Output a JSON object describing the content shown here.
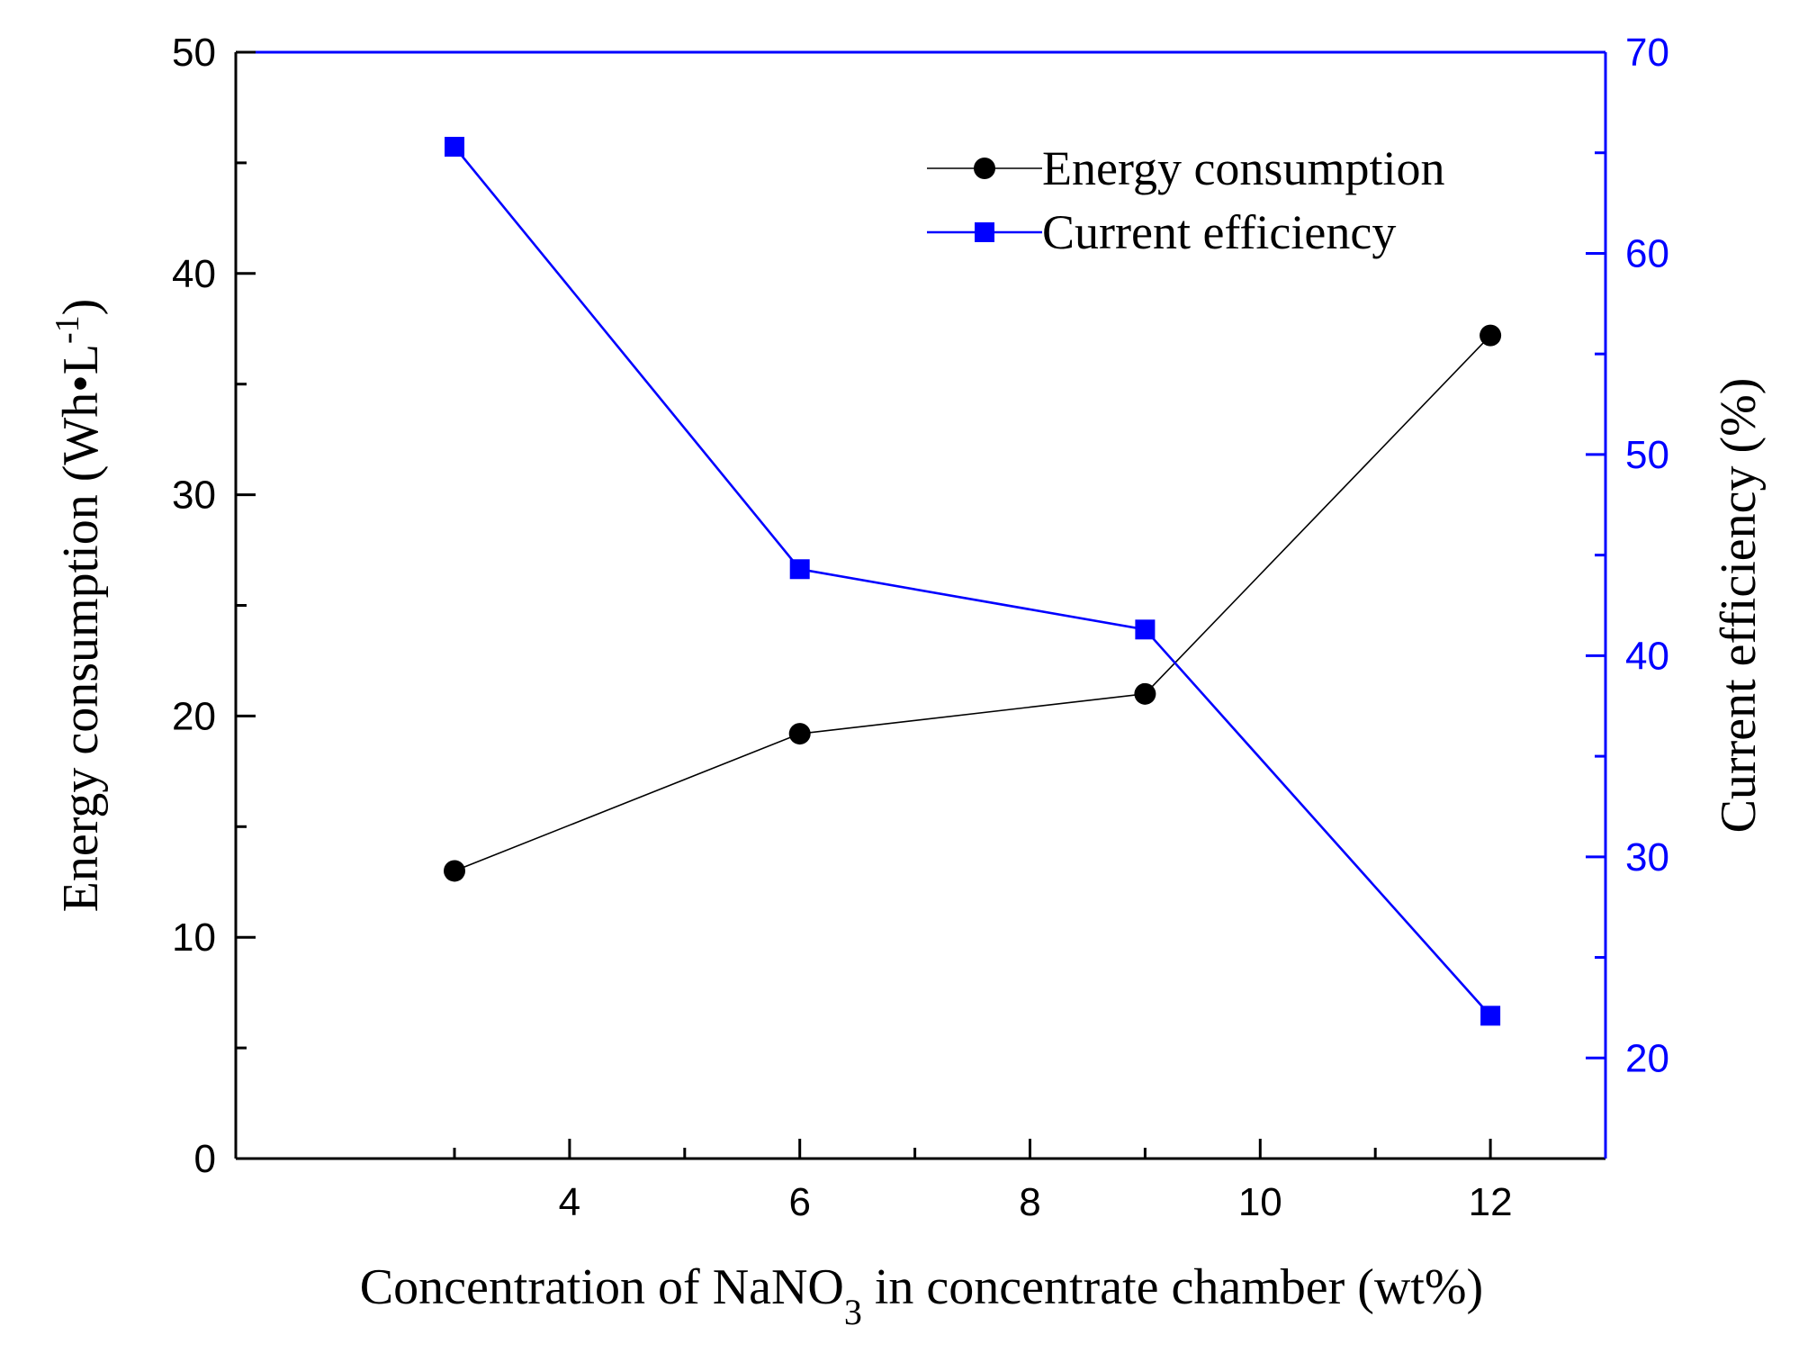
{
  "chart_data": {
    "type": "line",
    "title": "",
    "x": [
      3,
      6,
      9,
      12
    ],
    "xlim": [
      1.1,
      13.0
    ],
    "xticks": [
      "4",
      "6",
      "8",
      "10",
      "12"
    ],
    "xlabel": {
      "prefix": "Concentration of NaNO",
      "subscript": "3",
      "suffix": " in concentrate chamber (wt%)"
    },
    "y_left": {
      "label_main": "Energy consumption (Wh",
      "label_dot": "•",
      "label_unit": "L",
      "label_sup": "-1",
      "label_close": ")",
      "lim": [
        0,
        50
      ],
      "ticks": [
        "0",
        "10",
        "20",
        "30",
        "40",
        "50"
      ],
      "color": "#000000"
    },
    "y_right": {
      "label": "Current efficiency (%)",
      "lim": [
        15,
        70
      ],
      "ticks": [
        "20",
        "30",
        "40",
        "50",
        "60",
        "70"
      ],
      "color": "#0000ff"
    },
    "series": [
      {
        "name": "Energy consumption",
        "axis": "left",
        "marker": "circle",
        "color": "#000000",
        "values": [
          13.0,
          19.2,
          21.0,
          37.2
        ]
      },
      {
        "name": "Current efficiency",
        "axis": "right",
        "marker": "square",
        "color": "#0000ff",
        "values": [
          65.3,
          44.3,
          41.3,
          22.1
        ]
      }
    ],
    "legend": "top-right",
    "grid": false
  }
}
